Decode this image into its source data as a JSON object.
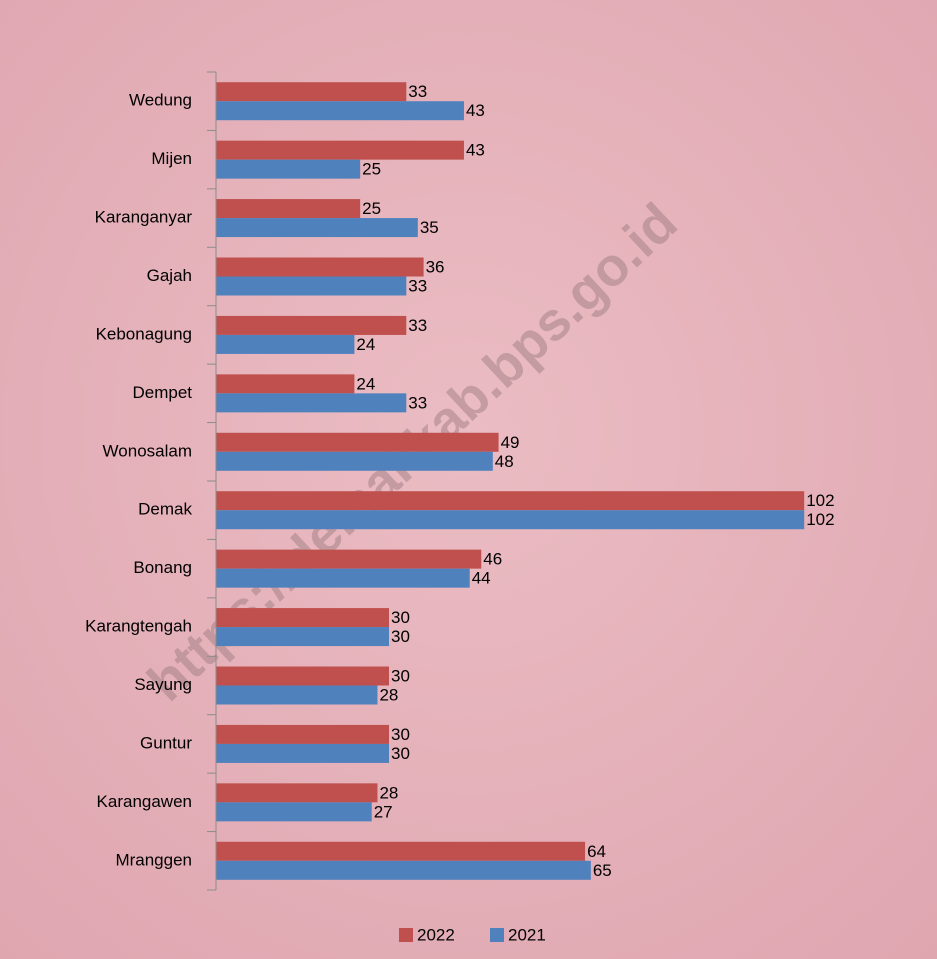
{
  "chart_data": {
    "type": "barh",
    "categories": [
      "Wedung",
      "Mijen",
      "Karanganyar",
      "Gajah",
      "Kebonagung",
      "Dempet",
      "Wonosalam",
      "Demak",
      "Bonang",
      "Karangtengah",
      "Sayung",
      "Guntur",
      "Karangawen",
      "Mranggen"
    ],
    "series": [
      {
        "name": "2022",
        "color": "#c0504d",
        "values": [
          33,
          43,
          25,
          36,
          33,
          24,
          49,
          102,
          46,
          30,
          30,
          30,
          28,
          64
        ]
      },
      {
        "name": "2021",
        "color": "#4f81bd",
        "values": [
          43,
          25,
          35,
          33,
          24,
          33,
          48,
          102,
          44,
          30,
          28,
          30,
          27,
          65
        ]
      }
    ],
    "xlim": [
      0,
      120
    ],
    "legend": "bottom",
    "watermark": "https://demakkab.bps.go.id"
  }
}
